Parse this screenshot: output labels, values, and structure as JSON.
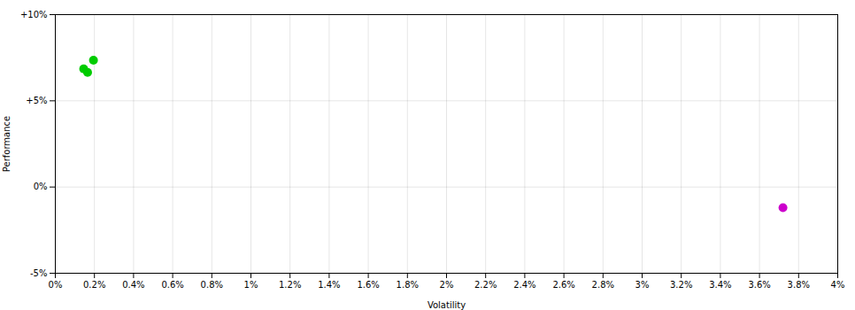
{
  "chart_data": {
    "type": "scatter",
    "xlabel": "Volatility",
    "ylabel": "Performance",
    "x": [
      0.00195,
      0.00165,
      0.00145,
      0.0372
    ],
    "values": [
      0.0735,
      0.0665,
      0.0685,
      -0.012
    ],
    "colors": [
      "#00cc00",
      "#00cc00",
      "#00cc00",
      "#cc00cc"
    ],
    "marker": "circle",
    "xlim": [
      0.0,
      0.04
    ],
    "ylim": [
      -0.05,
      0.1
    ],
    "xticks": [
      {
        "value": 0,
        "label": "0%"
      },
      {
        "value": 0.002,
        "label": "0.2%"
      },
      {
        "value": 0.004,
        "label": "0.4%"
      },
      {
        "value": 0.006,
        "label": "0.6%"
      },
      {
        "value": 0.008,
        "label": "0.8%"
      },
      {
        "value": 0.01,
        "label": "1%"
      },
      {
        "value": 0.012,
        "label": "1.2%"
      },
      {
        "value": 0.014,
        "label": "1.4%"
      },
      {
        "value": 0.016,
        "label": "1.6%"
      },
      {
        "value": 0.018,
        "label": "1.8%"
      },
      {
        "value": 0.02,
        "label": "2%"
      },
      {
        "value": 0.022,
        "label": "2.2%"
      },
      {
        "value": 0.024,
        "label": "2.4%"
      },
      {
        "value": 0.026,
        "label": "2.6%"
      },
      {
        "value": 0.028,
        "label": "2.8%"
      },
      {
        "value": 0.03,
        "label": "3%"
      },
      {
        "value": 0.032,
        "label": "3.2%"
      },
      {
        "value": 0.034,
        "label": "3.4%"
      },
      {
        "value": 0.036,
        "label": "3.6%"
      },
      {
        "value": 0.038,
        "label": "3.8%"
      },
      {
        "value": 0.04,
        "label": "4%"
      }
    ],
    "yticks": [
      {
        "value": -0.05,
        "label": "-5%"
      },
      {
        "value": 0,
        "label": "0%"
      },
      {
        "value": 0.05,
        "label": "+5%"
      },
      {
        "value": 0.1,
        "label": "+10%"
      }
    ],
    "grid": true
  }
}
